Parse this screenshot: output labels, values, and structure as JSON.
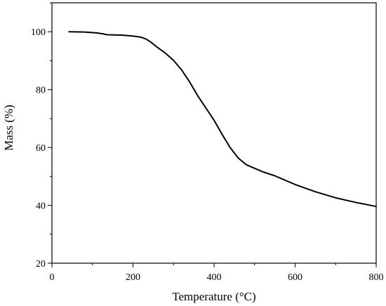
{
  "chart_data": {
    "type": "line",
    "xlabel": "Temperature (°C)",
    "ylabel": "Mass (%)",
    "xlim": [
      0,
      800
    ],
    "ylim": [
      20,
      110
    ],
    "x_ticks": [
      "0",
      "200",
      "400",
      "600",
      "800"
    ],
    "y_ticks": [
      "20",
      "40",
      "60",
      "80",
      "100"
    ],
    "x_tick_values": [
      0,
      200,
      400,
      600,
      800
    ],
    "y_tick_values": [
      20,
      40,
      60,
      80,
      100
    ],
    "grid": false,
    "line_color": "#000000",
    "series": [
      {
        "x": [
          42,
          80,
          110,
          125,
          135,
          150,
          175,
          200,
          220,
          232,
          245,
          260,
          280,
          300,
          320,
          340,
          360,
          380,
          400,
          420,
          440,
          460,
          480,
          500,
          520,
          550,
          600,
          650,
          700,
          750,
          800
        ],
        "y": [
          100,
          99.9,
          99.6,
          99.3,
          99.0,
          98.9,
          98.8,
          98.5,
          98.1,
          97.5,
          96.3,
          94.6,
          92.6,
          90.1,
          86.8,
          82.6,
          77.8,
          73.6,
          69.4,
          64.5,
          59.9,
          56.3,
          54.0,
          52.8,
          51.6,
          50.2,
          47.2,
          44.7,
          42.6,
          41.0,
          39.6
        ]
      }
    ]
  }
}
